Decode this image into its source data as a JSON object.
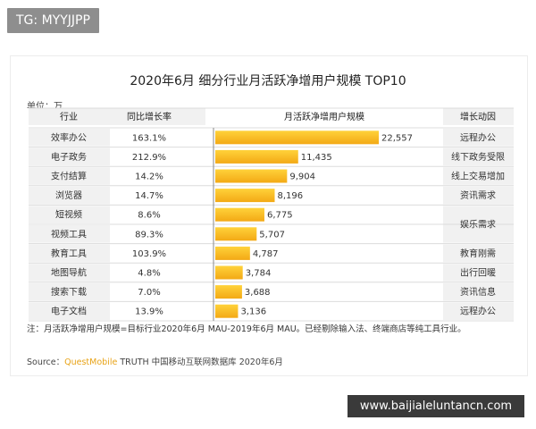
{
  "top_tag": "TG: MYYJJPP",
  "watermark_text": "www.baijialeluntancn.com",
  "unit_label": "单位：万",
  "note": "注：月活跃净增用户规模=目标行业2020年6月 MAU-2019年6月 MAU。已经剔除输入法、终端商店等纯工具行业。",
  "source": {
    "prefix": "Source：",
    "brand": "QuestMobile",
    "rest": " TRUTH 中国移动互联网数据库 2020年6月"
  },
  "colors": {
    "bar_top": "#ffd23a",
    "bar_bottom": "#f3a915",
    "row_bg": "#f1f1f1",
    "grid": "#dcdcdc"
  },
  "chart_data": {
    "type": "table",
    "title": "2020年6月 细分行业月活跃净增用户规模 TOP10",
    "columns": [
      "行业",
      "同比增长率",
      "月活跃净增用户规模",
      "增长动因"
    ],
    "rows": [
      {
        "industry": "效率办公",
        "yoy": "163.1%",
        "value": 22557,
        "value_label": "22,557",
        "driver": "远程办公"
      },
      {
        "industry": "电子政务",
        "yoy": "212.9%",
        "value": 11435,
        "value_label": "11,435",
        "driver": "线下政务受限"
      },
      {
        "industry": "支付结算",
        "yoy": "14.2%",
        "value": 9904,
        "value_label": "9,904",
        "driver": "线上交易增加"
      },
      {
        "industry": "浏览器",
        "yoy": "14.7%",
        "value": 8196,
        "value_label": "8,196",
        "driver": "资讯需求"
      },
      {
        "industry": "短视频",
        "yoy": "8.6%",
        "value": 6775,
        "value_label": "6,775",
        "driver": ""
      },
      {
        "industry": "视频工具",
        "yoy": "89.3%",
        "value": 5707,
        "value_label": "5,707",
        "driver": ""
      },
      {
        "industry": "教育工具",
        "yoy": "103.9%",
        "value": 4787,
        "value_label": "4,787",
        "driver": "教育刚需"
      },
      {
        "industry": "地图导航",
        "yoy": "4.8%",
        "value": 3784,
        "value_label": "3,784",
        "driver": "出行回暖"
      },
      {
        "industry": "搜索下载",
        "yoy": "7.0%",
        "value": 3688,
        "value_label": "3,688",
        "driver": "资讯信息"
      },
      {
        "industry": "电子文档",
        "yoy": "13.9%",
        "value": 3136,
        "value_label": "3,136",
        "driver": "远程办公"
      }
    ],
    "merged_driver": {
      "text": "娱乐需求",
      "rows": [
        4,
        5
      ]
    },
    "xlim": [
      0,
      22557
    ]
  }
}
